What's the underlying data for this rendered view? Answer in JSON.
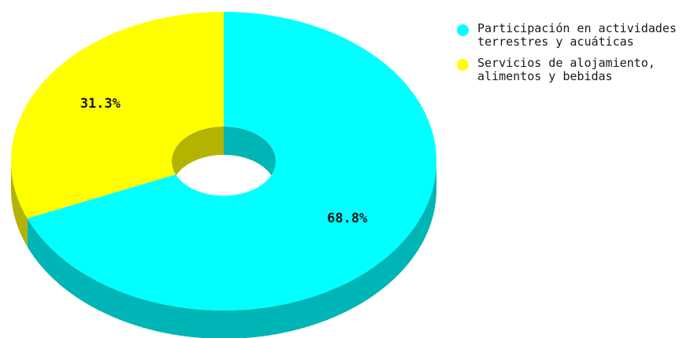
{
  "chart_data": {
    "type": "pie",
    "style": "3d-donut",
    "legend_position": "top-right",
    "slices": [
      {
        "label": "Participación en actividades terrestres y acuáticas",
        "value": 68.8,
        "value_label": "68.8%",
        "color": "#00ffff",
        "side_color": "#00b5b5"
      },
      {
        "label": "Servicios de alojamiento, alimentos y bebidas",
        "value": 31.3,
        "value_label": "31.3%",
        "color": "#ffff00",
        "side_color": "#b3b300"
      }
    ]
  }
}
